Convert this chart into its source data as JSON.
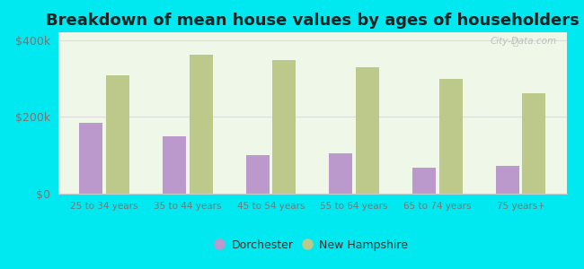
{
  "title": "Breakdown of mean house values by ages of householders",
  "categories": [
    "25 to 34 years",
    "35 to 44 years",
    "45 to 54 years",
    "55 to 64 years",
    "65 to 74 years",
    "75 years+"
  ],
  "dorchester": [
    185000,
    150000,
    100000,
    105000,
    68000,
    72000
  ],
  "new_hampshire": [
    308000,
    362000,
    348000,
    328000,
    298000,
    262000
  ],
  "dorchester_color": "#bb99cc",
  "new_hampshire_color": "#bdc98a",
  "background_outer": "#00e8f0",
  "background_inner_top": "#f2faf0",
  "background_inner_bottom": "#e8f5e0",
  "title_fontsize": 13,
  "legend_labels": [
    "Dorchester",
    "New Hampshire"
  ],
  "yticks": [
    0,
    200000,
    400000
  ],
  "ytick_labels": [
    "$0",
    "$200k",
    "$400k"
  ],
  "ylim": [
    0,
    420000
  ],
  "watermark": "City-Data.com"
}
